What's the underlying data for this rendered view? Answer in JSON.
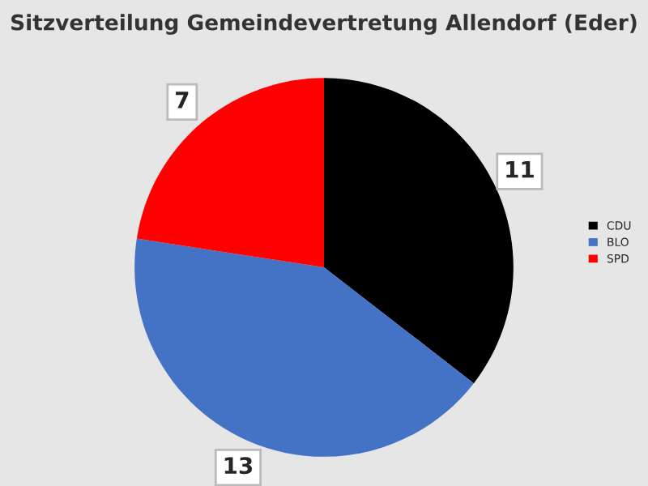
{
  "chart_data": {
    "type": "pie",
    "title": "Sitzverteilung Gemeindevertretung Allendorf (Eder)",
    "categories": [
      "CDU",
      "BLO",
      "SPD"
    ],
    "values": [
      11,
      13,
      7
    ],
    "colors": [
      "#000000",
      "#4472c4",
      "#ff0000"
    ],
    "data_labels": true,
    "legend": "right"
  }
}
